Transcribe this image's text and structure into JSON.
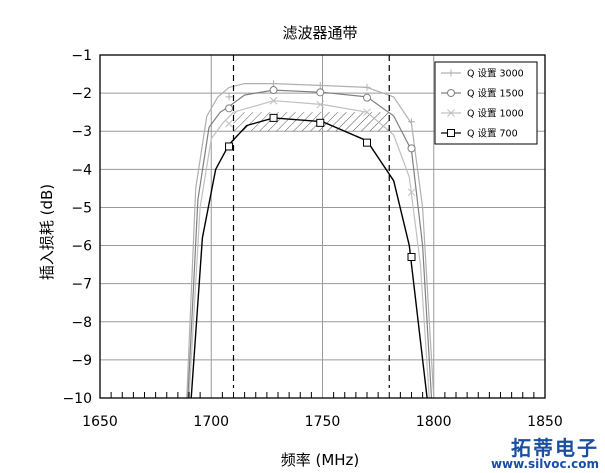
{
  "chart_data": {
    "type": "line",
    "title": "滤波器通带",
    "xlabel": "频率 (MHz)",
    "ylabel": "插入损耗 (dB)",
    "xlim": [
      1650,
      1850
    ],
    "ylim": [
      -10,
      -1
    ],
    "xticks": [
      1650,
      1700,
      1750,
      1800,
      1850
    ],
    "yticks": [
      -10,
      -9,
      -8,
      -7,
      -6,
      -5,
      -4,
      -3,
      -2,
      -1
    ],
    "grid": true,
    "legend_position": "top-right",
    "reference_lines_x": [
      1710,
      1780
    ],
    "shaded_band": {
      "x": [
        1710,
        1780
      ],
      "y": [
        -3,
        -2.5
      ]
    },
    "series": [
      {
        "name": "Q 设置 3000",
        "color": "#b0b0b0",
        "marker": "plus",
        "x": [
          1689,
          1693,
          1698,
          1703,
          1708,
          1715,
          1728,
          1750,
          1770,
          1782,
          1790,
          1795,
          1800
        ],
        "y": [
          -10,
          -4.5,
          -2.6,
          -2.1,
          -1.85,
          -1.75,
          -1.75,
          -1.8,
          -1.85,
          -2.1,
          -2.8,
          -5.0,
          -10
        ],
        "markers_x": [
          1708,
          1728,
          1749,
          1770,
          1790
        ],
        "markers_y": [
          -2.1,
          -1.75,
          -1.8,
          -1.85,
          -2.75
        ]
      },
      {
        "name": "Q 设置 1500",
        "color": "#808080",
        "marker": "circle",
        "x": [
          1689.5,
          1694,
          1699,
          1704,
          1708,
          1715,
          1728,
          1750,
          1770,
          1782,
          1790,
          1795,
          1799
        ],
        "y": [
          -10,
          -4.8,
          -2.9,
          -2.5,
          -2.35,
          -2.05,
          -1.92,
          -1.98,
          -2.1,
          -2.6,
          -3.5,
          -6.0,
          -10
        ],
        "markers_x": [
          1708,
          1728,
          1749,
          1770,
          1790
        ],
        "markers_y": [
          -2.4,
          -1.92,
          -1.98,
          -2.12,
          -3.45
        ]
      },
      {
        "name": "Q 设置 1000",
        "color": "#c0c0c0",
        "marker": "x",
        "x": [
          1690,
          1695,
          1700,
          1705,
          1710,
          1728,
          1750,
          1770,
          1782,
          1789,
          1794,
          1798
        ],
        "y": [
          -10,
          -5.0,
          -3.2,
          -2.8,
          -2.5,
          -2.2,
          -2.3,
          -2.5,
          -3.1,
          -4.2,
          -6.5,
          -10
        ],
        "markers_x": [
          1708,
          1728,
          1749,
          1770,
          1790
        ],
        "markers_y": [
          -2.8,
          -2.2,
          -2.3,
          -2.5,
          -4.6
        ]
      },
      {
        "name": "Q 设置 700",
        "color": "#000000",
        "marker": "square",
        "x": [
          1691,
          1696,
          1702,
          1708,
          1716,
          1728,
          1750,
          1770,
          1782,
          1789,
          1793,
          1797
        ],
        "y": [
          -10,
          -5.8,
          -4.0,
          -3.35,
          -2.85,
          -2.65,
          -2.75,
          -3.25,
          -4.3,
          -6.0,
          -8.0,
          -10
        ],
        "markers_x": [
          1708,
          1728,
          1749,
          1770,
          1790
        ],
        "markers_y": [
          -3.4,
          -2.65,
          -2.78,
          -3.3,
          -6.3
        ]
      }
    ]
  },
  "watermark": {
    "brand": "拓蒂电子",
    "url": "www.silvoc.com"
  }
}
